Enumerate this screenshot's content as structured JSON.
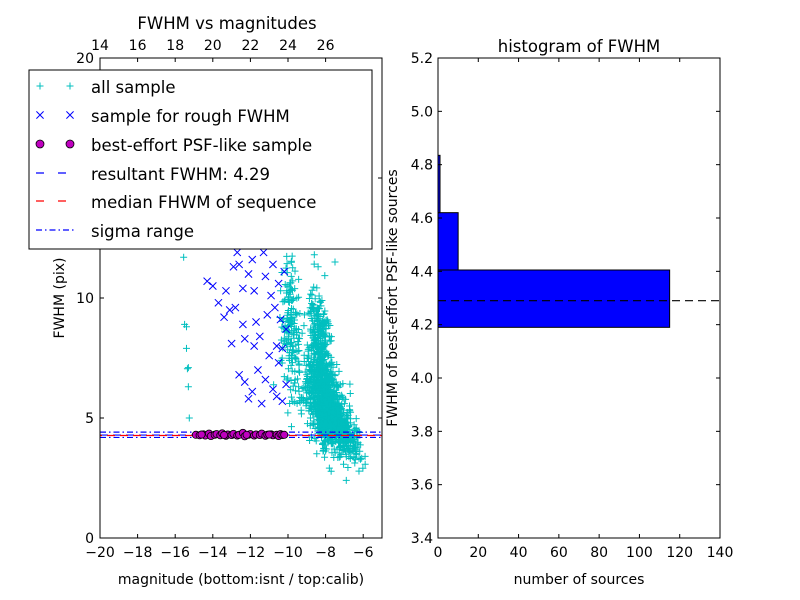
{
  "chart_data": [
    {
      "type": "scatter",
      "title": "FWHM vs magnitudes",
      "xlabel": "magnitude (bottom:isnt / top:calib)",
      "ylabel": "FWHM (pix)",
      "xlim": [
        -20,
        -5
      ],
      "ylim": [
        0,
        20
      ],
      "x_ticks": [
        -20,
        -18,
        -16,
        -14,
        -12,
        -10,
        -8,
        -6
      ],
      "x_tick_labels": [
        "−20",
        "−18",
        "−16",
        "−14",
        "−12",
        "−10",
        "−8",
        "−6"
      ],
      "y_ticks": [
        0,
        5,
        10,
        15,
        20
      ],
      "y_tick_labels": [
        "0",
        "5",
        "10",
        "15",
        "20"
      ],
      "top_x_ticks": [
        14,
        16,
        18,
        20,
        22,
        24,
        26
      ],
      "top_x_tick_labels": [
        "14",
        "16",
        "18",
        "20",
        "22",
        "24",
        "26"
      ],
      "top_axis_offset": 34.0,
      "legend_position": "upper-left",
      "series": [
        {
          "name": "all sample",
          "marker": "+",
          "color": "#00BFBF",
          "description": "dense cloud of all detected sources",
          "points": [
            [
              -15.55,
              11.7
            ],
            [
              -15.5,
              8.9
            ],
            [
              -15.4,
              7.9
            ],
            [
              -15.35,
              7.05
            ],
            [
              -15.3,
              6.3
            ],
            [
              -15.25,
              5.0
            ],
            [
              -15.4,
              8.8
            ],
            [
              -15.3,
              7.1
            ],
            [
              -9.5,
              19.3
            ],
            [
              -8.9,
              18.9
            ],
            [
              -8.4,
              13.5
            ],
            [
              -11.4,
              15.2
            ],
            [
              -6.9,
              2.4
            ],
            [
              -6.4,
              3.6
            ],
            [
              -5.9,
              3.4
            ],
            [
              -9.2,
              15.6
            ],
            [
              -7.5,
              11.5
            ],
            [
              -8.6,
              11.8
            ]
          ],
          "clusters": [
            {
              "x_center": -8.0,
              "x_spread": 1.1,
              "y_center": 5.6,
              "y_spread": 1.5,
              "count": 900
            },
            {
              "x_center": -8.3,
              "x_spread": 0.6,
              "y_center": 8.3,
              "y_spread": 1.6,
              "count": 260
            },
            {
              "x_center": -9.8,
              "x_spread": 0.5,
              "y_center": 8.6,
              "y_spread": 2.4,
              "count": 160
            },
            {
              "x_center": -7.0,
              "x_spread": 0.9,
              "y_center": 4.4,
              "y_spread": 0.7,
              "count": 220
            }
          ]
        },
        {
          "name": "sample for rough FWHM",
          "marker": "x",
          "color": "#0000FF",
          "points": [
            [
              -14.3,
              10.7
            ],
            [
              -14.0,
              10.5
            ],
            [
              -13.7,
              9.8
            ],
            [
              -13.4,
              9.2
            ],
            [
              -13.1,
              9.5
            ],
            [
              -12.7,
              11.9
            ],
            [
              -12.6,
              11.4
            ],
            [
              -12.4,
              10.4
            ],
            [
              -12.4,
              8.9
            ],
            [
              -12.3,
              8.3
            ],
            [
              -12.1,
              11.0
            ],
            [
              -11.9,
              11.6
            ],
            [
              -11.8,
              10.3
            ],
            [
              -11.7,
              9.0
            ],
            [
              -11.5,
              8.4
            ],
            [
              -11.3,
              11.9
            ],
            [
              -11.2,
              10.9
            ],
            [
              -11.1,
              9.3
            ],
            [
              -11.0,
              7.6
            ],
            [
              -10.9,
              10.1
            ],
            [
              -10.8,
              11.4
            ],
            [
              -10.7,
              9.6
            ],
            [
              -10.6,
              8.0
            ],
            [
              -10.5,
              10.6
            ],
            [
              -10.4,
              9.1
            ],
            [
              -10.3,
              7.9
            ],
            [
              -10.2,
              11.1
            ],
            [
              -10.1,
              8.7
            ],
            [
              -12.9,
              11.3
            ],
            [
              -13.3,
              10.3
            ],
            [
              -12.6,
              6.8
            ],
            [
              -12.3,
              6.5
            ],
            [
              -11.9,
              6.1
            ],
            [
              -11.6,
              7.0
            ],
            [
              -11.2,
              6.6
            ],
            [
              -10.8,
              6.2
            ],
            [
              -10.5,
              7.3
            ],
            [
              -10.3,
              5.7
            ],
            [
              -10.1,
              6.4
            ],
            [
              -11.4,
              5.6
            ],
            [
              -12.1,
              5.8
            ],
            [
              -10.6,
              5.9
            ],
            [
              -13.0,
              8.1
            ],
            [
              -12.8,
              9.6
            ],
            [
              -11.8,
              8.0
            ]
          ]
        },
        {
          "name": "best-effort PSF-like sample",
          "marker": "o",
          "color": "#BF00BF",
          "points": [
            [
              -14.9,
              4.3
            ],
            [
              -14.7,
              4.28
            ],
            [
              -14.5,
              4.32
            ],
            [
              -14.4,
              4.27
            ],
            [
              -14.2,
              4.35
            ],
            [
              -14.1,
              4.25
            ],
            [
              -13.9,
              4.3
            ],
            [
              -13.8,
              4.33
            ],
            [
              -13.6,
              4.28
            ],
            [
              -13.5,
              4.36
            ],
            [
              -13.3,
              4.26
            ],
            [
              -13.2,
              4.31
            ],
            [
              -13.0,
              4.29
            ],
            [
              -12.9,
              4.34
            ],
            [
              -12.7,
              4.27
            ],
            [
              -12.6,
              4.3
            ],
            [
              -12.4,
              4.38
            ],
            [
              -12.3,
              4.24
            ],
            [
              -12.1,
              4.3
            ],
            [
              -12.0,
              4.33
            ],
            [
              -11.8,
              4.27
            ],
            [
              -11.7,
              4.31
            ],
            [
              -11.5,
              4.29
            ],
            [
              -11.4,
              4.35
            ],
            [
              -11.2,
              4.26
            ],
            [
              -11.1,
              4.3
            ],
            [
              -10.9,
              4.32
            ],
            [
              -10.8,
              4.28
            ],
            [
              -10.6,
              4.3
            ],
            [
              -10.5,
              4.25
            ],
            [
              -10.4,
              4.33
            ],
            [
              -10.3,
              4.29
            ],
            [
              -14.6,
              4.31
            ],
            [
              -13.4,
              4.29
            ],
            [
              -12.2,
              4.3
            ],
            [
              -11.0,
              4.31
            ],
            [
              -10.2,
              4.3
            ]
          ]
        },
        {
          "name": "resultant FWHM: 4.29",
          "type": "hline",
          "style": "dashed",
          "color": "#0000FF",
          "y": 4.29
        },
        {
          "name": "median FHWM of sequence",
          "type": "hline",
          "style": "dashed",
          "color": "#FF0000",
          "y": 4.27
        },
        {
          "name": "sigma range",
          "type": "hline",
          "style": "dashdot",
          "color": "#0000FF",
          "y": [
            4.19,
            4.41
          ]
        }
      ]
    },
    {
      "type": "bar",
      "orientation": "horizontal",
      "title": "histogram of FWHM",
      "xlabel": "number of sources",
      "ylabel": "FWHM of best-effort PSF-like sources",
      "xlim": [
        0,
        140
      ],
      "ylim": [
        3.4,
        5.2
      ],
      "x_ticks": [
        0,
        20,
        40,
        60,
        80,
        100,
        120,
        140
      ],
      "x_tick_labels": [
        "0",
        "20",
        "40",
        "60",
        "80",
        "100",
        "120",
        "140"
      ],
      "y_ticks": [
        3.4,
        3.6,
        3.8,
        4.0,
        4.2,
        4.4,
        4.6,
        4.8,
        5.0,
        5.2
      ],
      "y_tick_labels": [
        "3.4",
        "3.6",
        "3.8",
        "4.0",
        "4.2",
        "4.4",
        "4.6",
        "4.8",
        "5.0",
        "5.2"
      ],
      "color": "#0000FF",
      "bins": [
        {
          "y_low": 4.19,
          "y_high": 4.405,
          "count": 115
        },
        {
          "y_low": 4.405,
          "y_high": 4.62,
          "count": 10
        },
        {
          "y_low": 4.62,
          "y_high": 4.835,
          "count": 1
        }
      ],
      "reference_line": {
        "y": 4.29,
        "style": "dashed",
        "color": "#000000"
      }
    }
  ]
}
